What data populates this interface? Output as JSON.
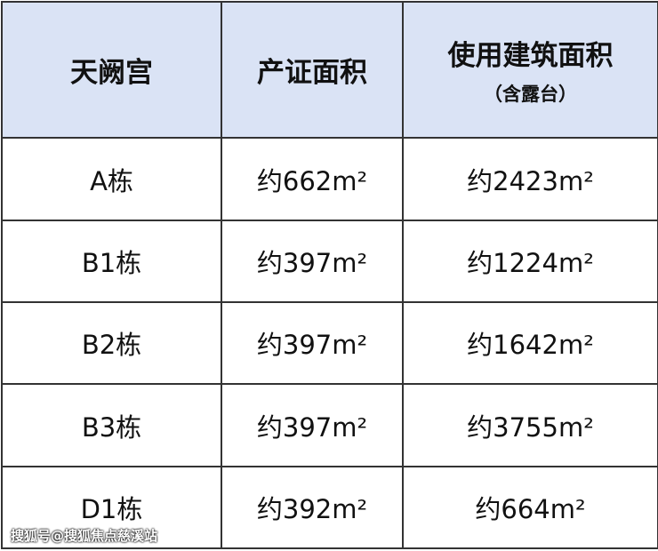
{
  "table": {
    "header": [
      "天阙宫",
      "产证面积",
      "使用建筑面积"
    ],
    "header_note": "（含露台）",
    "rows": [
      [
        "A栋",
        "约662m²",
        "约2423m²"
      ],
      [
        "B1栋",
        "约397m²",
        "约1224m²"
      ],
      [
        "B2栋",
        "约397m²",
        "约1642m²"
      ],
      [
        "B3栋",
        "约397m²",
        "约3755m²"
      ],
      [
        "D1栋",
        "约392m²",
        "约664m²"
      ]
    ]
  },
  "watermark": "搜狐号@搜狐焦点慈溪站"
}
